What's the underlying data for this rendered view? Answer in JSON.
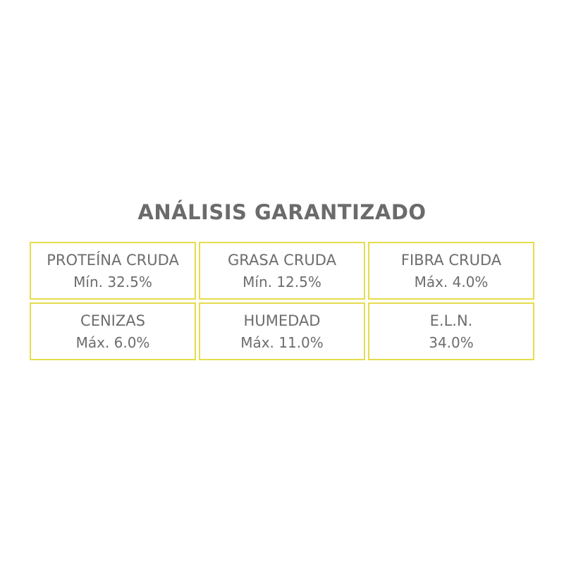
{
  "title": "ANÁLISIS GARANTIZADO",
  "colors": {
    "text": "#6d6d6d",
    "border": "#e6dc4f"
  },
  "items": [
    {
      "name": "PROTEÍNA CRUDA",
      "value": "Mín. 32.5%"
    },
    {
      "name": "GRASA CRUDA",
      "value": "Mín. 12.5%"
    },
    {
      "name": "FIBRA CRUDA",
      "value": "Máx. 4.0%"
    },
    {
      "name": "CENIZAS",
      "value": "Máx. 6.0%"
    },
    {
      "name": "HUMEDAD",
      "value": "Máx. 11.0%"
    },
    {
      "name": "E.L.N.",
      "value": "34.0%"
    }
  ]
}
